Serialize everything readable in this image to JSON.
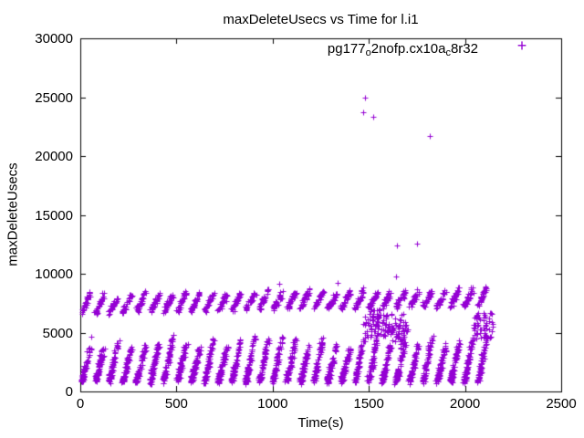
{
  "chart_data": {
    "type": "scatter",
    "title": "maxDeleteUsecs vs Time for l.i1",
    "xlabel": "Time(s)",
    "ylabel": "maxDeleteUsecs",
    "xlim": [
      0,
      2500
    ],
    "ylim": [
      0,
      30000
    ],
    "xticks": [
      0,
      500,
      1000,
      1500,
      2000,
      2500
    ],
    "yticks": [
      0,
      5000,
      10000,
      15000,
      20000,
      25000,
      30000
    ],
    "grid": false,
    "legend_position": "top-right",
    "legend_parts": [
      "pg177",
      "o",
      "2nofp.cx10a",
      "c",
      "8r32"
    ],
    "marker": "+",
    "color": "#9400d3",
    "axis_color": "#000000",
    "background_color": "#ffffff",
    "bands": {
      "x_start": 8,
      "x_end": 2130,
      "stripe_period": 71,
      "stripe_x_span": 46,
      "lower": {
        "y_base": 880,
        "y_span": 3300,
        "points": 70,
        "jitter_x": 13,
        "jitter_y": 380,
        "t_pow": 1.6
      },
      "upper": {
        "y_start": 7150,
        "trend": 0.28,
        "y_offset": -450,
        "y_span": 1500,
        "points": 34,
        "jitter_x": 13,
        "jitter_y": 300,
        "t_pow": 1.15
      }
    },
    "extra_clusters": [
      {
        "x0": 1470,
        "x1": 1705,
        "y0": 4600,
        "y1": 6600,
        "n": 85
      },
      {
        "x0": 1505,
        "x1": 1565,
        "y0": 5700,
        "y1": 7000,
        "n": 22
      },
      {
        "x0": 2040,
        "x1": 2148,
        "y0": 4400,
        "y1": 6700,
        "n": 55
      },
      {
        "x0": 1600,
        "x1": 1700,
        "y0": 3600,
        "y1": 5600,
        "n": 28
      }
    ],
    "outliers": [
      [
        1480,
        25000
      ],
      [
        1472,
        23700
      ],
      [
        1523,
        23300
      ],
      [
        1818,
        21700
      ],
      [
        1752,
        12550
      ],
      [
        1646,
        12400
      ],
      [
        1643,
        9800
      ],
      [
        1035,
        9150
      ],
      [
        1340,
        9250
      ],
      [
        2098,
        4650
      ],
      [
        1660,
        5650
      ],
      [
        1690,
        5900
      ],
      [
        55,
        4650
      ]
    ]
  }
}
